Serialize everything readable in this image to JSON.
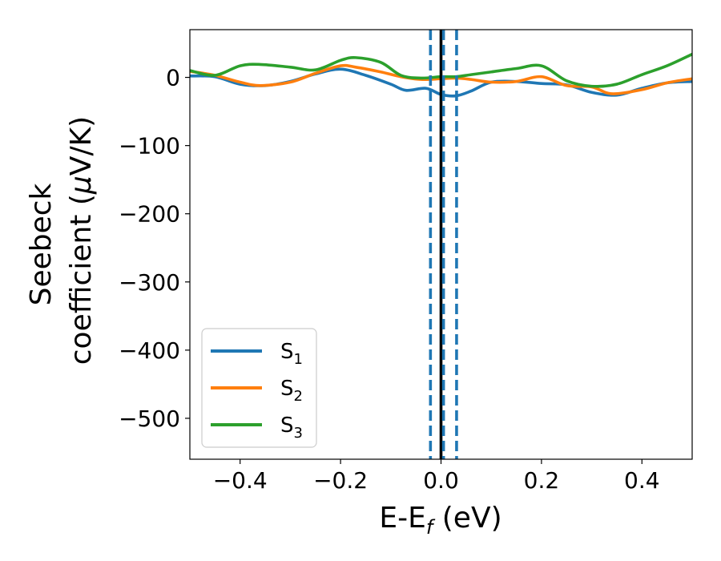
{
  "chart_data": {
    "type": "line",
    "title": "",
    "xlabel": {
      "main": "E-E",
      "sub": "f",
      "unit": " (eV)"
    },
    "ylabel": {
      "line1": "Seebeck",
      "line2": "coefficient  (",
      "mu": "μ",
      "unit": "V/K)"
    },
    "xlim": [
      -0.5,
      0.5
    ],
    "ylim": [
      -560,
      70
    ],
    "xticks": [
      -0.4,
      -0.2,
      0.0,
      0.2,
      0.4
    ],
    "xtick_labels": [
      "−0.4",
      "−0.2",
      "0.0",
      "0.2",
      "0.4"
    ],
    "yticks": [
      0,
      -100,
      -200,
      -300,
      -400,
      -500
    ],
    "ytick_labels": [
      "0",
      "−100",
      "−200",
      "−300",
      "−400",
      "−500"
    ],
    "grid": false,
    "legend": {
      "position": "lower-left"
    },
    "vertical_lines": [
      {
        "x": 0.0,
        "style": "solid",
        "color": "#000000"
      },
      {
        "x": -0.021,
        "style": "dashed",
        "color": "#1f77b4"
      },
      {
        "x": 0.005,
        "style": "dashed",
        "color": "#1f77b4"
      },
      {
        "x": 0.031,
        "style": "dashed",
        "color": "#1f77b4"
      }
    ],
    "series": [
      {
        "name": "S",
        "sub": "1",
        "color": "#1f77b4",
        "x": [
          -0.5,
          -0.45,
          -0.4,
          -0.35,
          -0.3,
          -0.25,
          -0.2,
          -0.15,
          -0.1,
          -0.07,
          -0.03,
          0.0,
          0.03,
          0.06,
          0.1,
          0.15,
          0.2,
          0.25,
          0.3,
          0.35,
          0.4,
          0.45,
          0.5
        ],
        "y": [
          2,
          1,
          -10,
          -12,
          -6,
          5,
          12,
          3,
          -10,
          -19,
          -16,
          -25,
          -27,
          -20,
          -7,
          -6,
          -9,
          -11,
          -22,
          -26,
          -16,
          -8,
          -6
        ]
      },
      {
        "name": "S",
        "sub": "2",
        "color": "#ff7f0e",
        "x": [
          -0.5,
          -0.45,
          -0.4,
          -0.36,
          -0.3,
          -0.25,
          -0.2,
          -0.17,
          -0.12,
          -0.08,
          -0.04,
          0.0,
          0.03,
          0.06,
          0.1,
          0.15,
          0.2,
          0.25,
          0.3,
          0.34,
          0.4,
          0.45,
          0.5
        ],
        "y": [
          9,
          3,
          -7,
          -12,
          -7,
          6,
          17,
          15,
          8,
          1,
          -3,
          -2,
          -1,
          -3,
          -7,
          -6,
          1,
          -12,
          -14,
          -24,
          -18,
          -8,
          -2
        ]
      },
      {
        "name": "S",
        "sub": "3",
        "color": "#2ca02c",
        "x": [
          -0.5,
          -0.45,
          -0.4,
          -0.36,
          -0.3,
          -0.25,
          -0.2,
          -0.17,
          -0.12,
          -0.08,
          -0.04,
          0.0,
          0.03,
          0.06,
          0.1,
          0.15,
          0.2,
          0.25,
          0.3,
          0.35,
          0.4,
          0.45,
          0.5
        ],
        "y": [
          10,
          3,
          17,
          19,
          15,
          11,
          25,
          29,
          22,
          3,
          -1,
          1,
          1,
          4,
          8,
          13,
          17,
          -5,
          -13,
          -10,
          4,
          17,
          34
        ]
      }
    ]
  }
}
